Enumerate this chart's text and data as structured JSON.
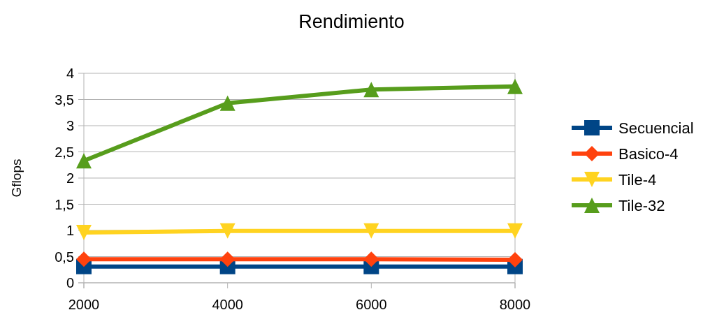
{
  "chart_data": {
    "type": "line",
    "title": "Rendimiento",
    "ylabel": "Gflops",
    "x": [
      2000,
      4000,
      6000,
      8000
    ],
    "xlim": [
      2000,
      8000
    ],
    "xticks": [
      2000,
      4000,
      6000,
      8000
    ],
    "ylim": [
      0,
      4
    ],
    "yticks": [
      0,
      {
        "value": 0.5,
        "label": "0,5"
      },
      1,
      {
        "value": 1.5,
        "label": "1,5"
      },
      2,
      {
        "value": 2.5,
        "label": "2,5"
      },
      3,
      {
        "value": 3.5,
        "label": "3,5"
      },
      4
    ],
    "grid": "y",
    "legend": "right",
    "series": [
      {
        "name": "Secuencial",
        "color": "#004586",
        "marker": "square",
        "values": [
          0.31,
          0.31,
          0.31,
          0.31
        ]
      },
      {
        "name": "Basico-4",
        "color": "#ff420e",
        "marker": "diamond",
        "values": [
          0.45,
          0.45,
          0.45,
          0.44
        ]
      },
      {
        "name": "Tile-4",
        "color": "#ffd320",
        "marker": "triangle-down",
        "values": [
          0.96,
          0.99,
          0.99,
          0.99
        ]
      },
      {
        "name": "Tile-32",
        "color": "#579d1c",
        "marker": "triangle",
        "values": [
          2.33,
          3.43,
          3.69,
          3.75
        ]
      }
    ]
  }
}
